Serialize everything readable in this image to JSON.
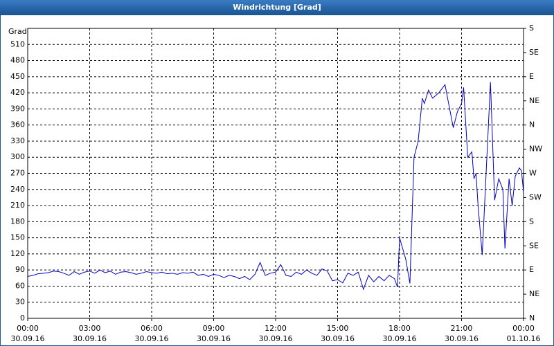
{
  "chart_data": {
    "type": "line",
    "title": "Windrichtung [Grad]",
    "ylabel": "Grad",
    "x": [
      0,
      0.25,
      0.5,
      0.75,
      1,
      1.25,
      1.5,
      1.75,
      2,
      2.25,
      2.5,
      2.75,
      3,
      3.25,
      3.5,
      3.75,
      4,
      4.25,
      4.5,
      4.75,
      5,
      5.25,
      5.5,
      5.75,
      6,
      6.25,
      6.5,
      6.75,
      7,
      7.25,
      7.5,
      7.75,
      8,
      8.25,
      8.5,
      8.75,
      9,
      9.25,
      9.5,
      9.75,
      10,
      10.25,
      10.5,
      10.75,
      11,
      11.25,
      11.5,
      11.75,
      12,
      12.25,
      12.5,
      12.75,
      13,
      13.25,
      13.5,
      13.75,
      14,
      14.25,
      14.5,
      14.75,
      15,
      15.25,
      15.5,
      15.75,
      16,
      16.25,
      16.5,
      16.75,
      17,
      17.25,
      17.5,
      17.75,
      17.9,
      18,
      18.3,
      18.5,
      18.7,
      18.9,
      19.1,
      19.2,
      19.4,
      19.6,
      19.9,
      20.2,
      20.6,
      20.8,
      21,
      21.1,
      21.3,
      21.5,
      21.6,
      21.7,
      21.8,
      22,
      22.4,
      22.6,
      22.8,
      23,
      23.1,
      23.3,
      23.45,
      23.6,
      23.8,
      23.9,
      24
    ],
    "series": [
      {
        "name": "Windrichtung",
        "color": "#0000c0",
        "values": [
          78,
          80,
          83,
          84,
          85,
          88,
          87,
          84,
          80,
          87,
          82,
          86,
          88,
          84,
          90,
          85,
          88,
          82,
          86,
          87,
          85,
          82,
          84,
          87,
          85,
          84,
          86,
          83,
          84,
          82,
          85,
          84,
          86,
          80,
          82,
          78,
          82,
          80,
          76,
          80,
          78,
          74,
          78,
          72,
          82,
          104,
          80,
          84,
          86,
          100,
          80,
          78,
          86,
          82,
          90,
          84,
          80,
          92,
          88,
          70,
          72,
          66,
          84,
          80,
          86,
          54,
          80,
          68,
          78,
          70,
          80,
          74,
          58,
          150,
          110,
          65,
          300,
          330,
          410,
          400,
          425,
          410,
          420,
          435,
          355,
          385,
          400,
          430,
          300,
          310,
          260,
          270,
          210,
          118,
          440,
          220,
          260,
          240,
          130,
          260,
          210,
          265,
          280,
          275,
          235
        ]
      }
    ],
    "xlim": [
      0,
      24
    ],
    "ylim": [
      0,
      540
    ],
    "y2lim": [
      0,
      540
    ],
    "xticks": [
      {
        "value": 0,
        "label": "00:00"
      },
      {
        "value": 3,
        "label": "03:00"
      },
      {
        "value": 6,
        "label": "06:00"
      },
      {
        "value": 9,
        "label": "09:00"
      },
      {
        "value": 12,
        "label": "12:00"
      },
      {
        "value": 15,
        "label": "15:00"
      },
      {
        "value": 18,
        "label": "18:00"
      },
      {
        "value": 21,
        "label": "21:00"
      },
      {
        "value": 24,
        "label": "00:00"
      }
    ],
    "xtick_dates": [
      "30.09.16",
      "30.09.16",
      "30.09.16",
      "30.09.16",
      "30.09.16",
      "30.09.16",
      "30.09.16",
      "30.09.16",
      "01.10.16"
    ],
    "yticks": [
      0,
      30,
      60,
      90,
      120,
      150,
      180,
      210,
      240,
      270,
      300,
      330,
      360,
      390,
      420,
      450,
      480,
      510
    ],
    "y2ticks": [
      {
        "value": 0,
        "label": "N"
      },
      {
        "value": 45,
        "label": "NE"
      },
      {
        "value": 90,
        "label": "E"
      },
      {
        "value": 135,
        "label": "SE"
      },
      {
        "value": 180,
        "label": "S"
      },
      {
        "value": 225,
        "label": "SW"
      },
      {
        "value": 270,
        "label": "W"
      },
      {
        "value": 315,
        "label": "NW"
      },
      {
        "value": 360,
        "label": "N"
      },
      {
        "value": 405,
        "label": "NE"
      },
      {
        "value": 450,
        "label": "E"
      },
      {
        "value": 495,
        "label": "SE"
      },
      {
        "value": 540,
        "label": "S"
      }
    ],
    "grid": true
  }
}
